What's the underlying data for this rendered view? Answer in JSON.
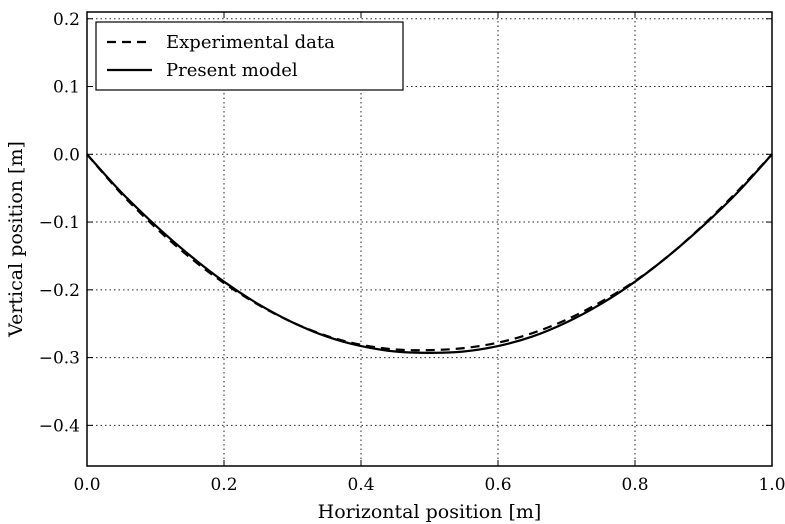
{
  "chart_data": {
    "type": "line",
    "title": "",
    "xlabel": "Horizontal position [m]",
    "ylabel": "Vertical position [m]",
    "xlim": [
      0.0,
      1.0
    ],
    "ylim": [
      -0.46,
      0.21
    ],
    "xticks": [
      0.0,
      0.2,
      0.4,
      0.6,
      0.8,
      1.0
    ],
    "xtick_labels": [
      "0.0",
      "0.2",
      "0.4",
      "0.6",
      "0.8",
      "1.0"
    ],
    "yticks": [
      0.2,
      0.1,
      0.0,
      -0.1,
      -0.2,
      -0.3,
      -0.4
    ],
    "ytick_labels": [
      "0.2",
      "0.1",
      "0.0",
      "−0.1",
      "−0.2",
      "−0.3",
      "−0.4"
    ],
    "grid": true,
    "legend_position": "top-left",
    "series": [
      {
        "name": "Experimental data",
        "line_style": "dashed",
        "color": "#000000",
        "x": [
          0.0,
          0.05,
          0.1,
          0.15,
          0.2,
          0.25,
          0.3,
          0.35,
          0.4,
          0.45,
          0.5,
          0.55,
          0.6,
          0.65,
          0.7,
          0.75,
          0.8,
          0.85,
          0.9,
          0.95,
          1.0
        ],
        "y": [
          0.0,
          -0.058,
          -0.108,
          -0.152,
          -0.19,
          -0.222,
          -0.248,
          -0.268,
          -0.281,
          -0.288,
          -0.289,
          -0.286,
          -0.278,
          -0.264,
          -0.244,
          -0.218,
          -0.187,
          -0.149,
          -0.104,
          -0.054,
          0.0
        ]
      },
      {
        "name": "Present model",
        "line_style": "solid",
        "color": "#000000",
        "x": [
          0.0,
          0.05,
          0.1,
          0.15,
          0.2,
          0.25,
          0.3,
          0.35,
          0.4,
          0.45,
          0.5,
          0.55,
          0.6,
          0.65,
          0.7,
          0.75,
          0.8,
          0.85,
          0.9,
          0.95,
          1.0
        ],
        "y": [
          0.0,
          -0.056,
          -0.105,
          -0.149,
          -0.188,
          -0.221,
          -0.248,
          -0.269,
          -0.283,
          -0.291,
          -0.293,
          -0.291,
          -0.283,
          -0.269,
          -0.248,
          -0.221,
          -0.188,
          -0.149,
          -0.105,
          -0.056,
          0.0
        ]
      }
    ]
  }
}
